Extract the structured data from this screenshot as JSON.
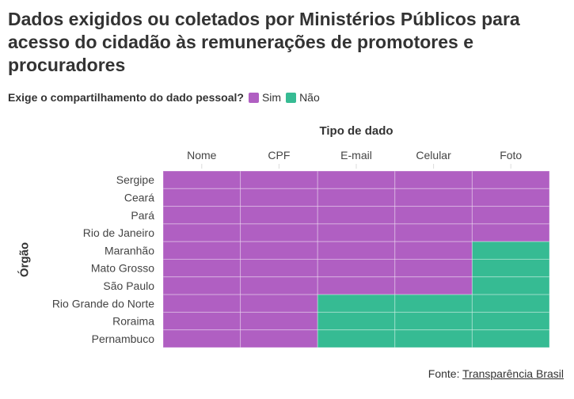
{
  "title": "Dados exigidos ou coletados por Ministérios Públicos para acesso do cidadão às remunerações de promotores e procuradores",
  "legend": {
    "title": "Exige o compartilhamento do dado pessoal?",
    "items": [
      {
        "label": "Sim",
        "color": "#b05fc2"
      },
      {
        "label": "Não",
        "color": "#36bb93"
      }
    ]
  },
  "source": {
    "prefix": "Fonte: ",
    "link": "Transparência Brasil"
  },
  "chart_data": {
    "type": "heatmap",
    "xlabel": "Tipo de dado",
    "ylabel": "Órgão",
    "x": [
      "Nome",
      "CPF",
      "E-mail",
      "Celular",
      "Foto"
    ],
    "y": [
      "Sergipe",
      "Ceará",
      "Pará",
      "Rio de Janeiro",
      "Maranhão",
      "Mato Grosso",
      "São Paulo",
      "Rio Grande do Norte",
      "Roraima",
      "Pernambuco"
    ],
    "values": [
      [
        "Sim",
        "Sim",
        "Sim",
        "Sim",
        "Sim"
      ],
      [
        "Sim",
        "Sim",
        "Sim",
        "Sim",
        "Sim"
      ],
      [
        "Sim",
        "Sim",
        "Sim",
        "Sim",
        "Sim"
      ],
      [
        "Sim",
        "Sim",
        "Sim",
        "Sim",
        "Sim"
      ],
      [
        "Sim",
        "Sim",
        "Sim",
        "Sim",
        "Não"
      ],
      [
        "Sim",
        "Sim",
        "Sim",
        "Sim",
        "Não"
      ],
      [
        "Sim",
        "Sim",
        "Sim",
        "Sim",
        "Não"
      ],
      [
        "Sim",
        "Sim",
        "Não",
        "Não",
        "Não"
      ],
      [
        "Sim",
        "Sim",
        "Não",
        "Não",
        "Não"
      ],
      [
        "Sim",
        "Sim",
        "Não",
        "Não",
        "Não"
      ]
    ],
    "x_axis_position": "top",
    "grid": false,
    "legend_position": "top-left"
  }
}
